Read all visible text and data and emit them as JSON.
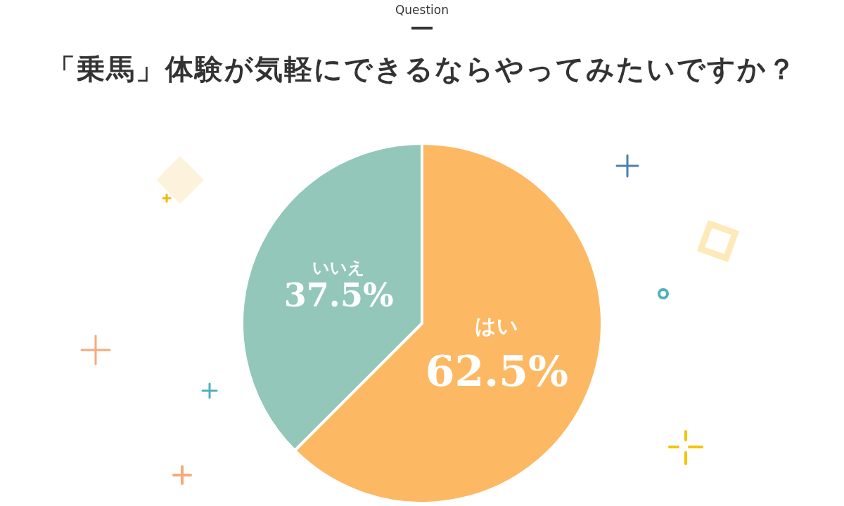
{
  "chart_data": {
    "type": "pie",
    "subtitle": "Question",
    "title": "「乗馬」体験が気軽にできるならやってみたいですか？",
    "categories": [
      "はい",
      "いいえ"
    ],
    "values": [
      62.5,
      37.5
    ],
    "colors": [
      "#fdb863",
      "#92c7b9"
    ],
    "value_labels": [
      "62.5%",
      "37.5%"
    ]
  }
}
